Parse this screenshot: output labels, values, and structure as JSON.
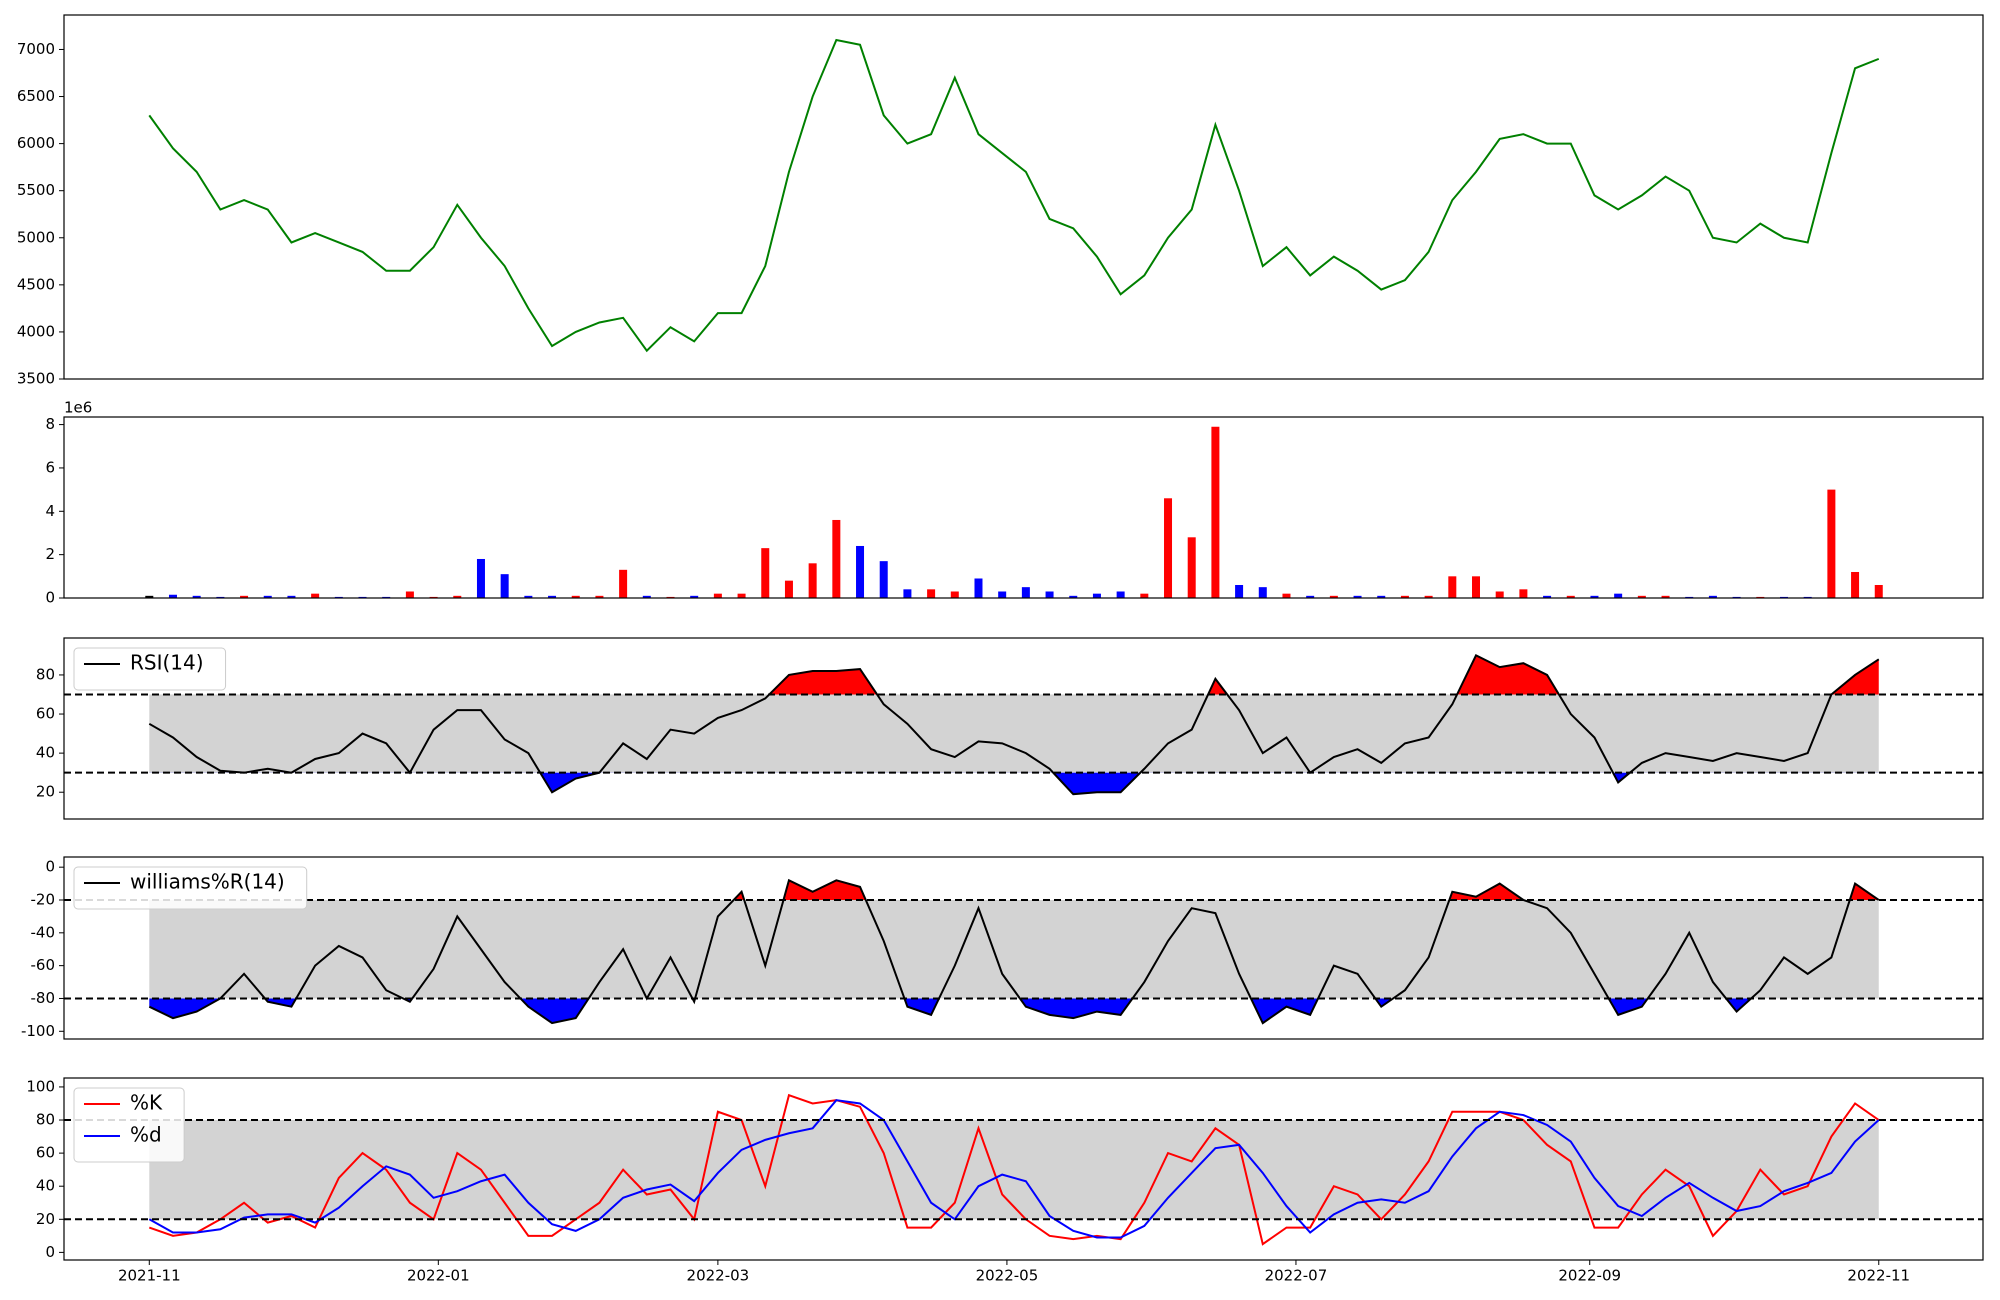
{
  "chart_data": [
    {
      "type": "line",
      "color": "green",
      "x": [
        0,
        5,
        10,
        15,
        20,
        25,
        30,
        35,
        40,
        45,
        50,
        55,
        60,
        65,
        70,
        75,
        80,
        85,
        90,
        95,
        100,
        105,
        110,
        115,
        120,
        125,
        130,
        135,
        140,
        145,
        150,
        155,
        160,
        165,
        170,
        175,
        180,
        185,
        190,
        195,
        200,
        205,
        210,
        215,
        220,
        225,
        230,
        235,
        240,
        245,
        250,
        255,
        260,
        265,
        270,
        275,
        280,
        285,
        290,
        295,
        300,
        305,
        310,
        315,
        320,
        325,
        330,
        335,
        340,
        345,
        350,
        355,
        360,
        365
      ],
      "xlim": [
        -18,
        387
      ],
      "xticks": [
        {
          "value": 0,
          "label": "2021-11"
        },
        {
          "value": 61,
          "label": "2022-01"
        },
        {
          "value": 120,
          "label": "2022-03"
        },
        {
          "value": 181,
          "label": "2022-05"
        },
        {
          "value": 242,
          "label": "2022-07"
        },
        {
          "value": 304,
          "label": "2022-09"
        },
        {
          "value": 365,
          "label": "2022-11"
        }
      ],
      "values": [
        6300,
        5950,
        5700,
        5300,
        5400,
        5300,
        4950,
        5050,
        4950,
        4850,
        4650,
        4650,
        4900,
        5350,
        5000,
        4700,
        4250,
        3850,
        4000,
        4100,
        4150,
        3800,
        4050,
        3900,
        4200,
        4200,
        4700,
        5700,
        6500,
        7100,
        7050,
        6300,
        6000,
        6100,
        6700,
        6100,
        5900,
        5700,
        5200,
        5100,
        4800,
        4400,
        4600,
        5000,
        5300,
        6200,
        5500,
        4700,
        4900,
        4600,
        4800,
        4650,
        4450,
        4550,
        4850,
        5400,
        5700,
        6050,
        6100,
        6000,
        6000,
        5450,
        5300,
        5450,
        5650,
        5500,
        5000,
        4950,
        5150,
        5000,
        4950,
        5900,
        6800,
        6900
      ],
      "ylim": [
        3500,
        7366
      ],
      "yticks": [
        3500,
        4000,
        4500,
        5000,
        5500,
        6000,
        6500,
        7000
      ]
    },
    {
      "type": "bar",
      "offset_label": "1e6",
      "up_color": "red",
      "down_color": "blue",
      "neutral_color": "black",
      "values": [
        0.1,
        0.15,
        0.1,
        0.05,
        0.1,
        0.1,
        0.1,
        0.2,
        0.05,
        0.05,
        0.05,
        0.3,
        0.05,
        0.1,
        1.8,
        1.1,
        0.1,
        0.1,
        0.1,
        0.1,
        1.3,
        0.1,
        0.05,
        0.1,
        0.2,
        0.2,
        2.3,
        0.8,
        1.6,
        3.6,
        2.4,
        1.7,
        0.4,
        0.4,
        0.3,
        0.9,
        0.3,
        0.5,
        0.3,
        0.1,
        0.2,
        0.3,
        0.2,
        4.6,
        2.8,
        7.9,
        0.6,
        0.5,
        0.2,
        0.1,
        0.1,
        0.1,
        0.1,
        0.1,
        0.1,
        1.0,
        1.0,
        0.3,
        0.4,
        0.1,
        0.1,
        0.1,
        0.2,
        0.1,
        0.1,
        0.05,
        0.1,
        0.05,
        0.05,
        0.05,
        0.05,
        5.0,
        1.2,
        0.6
      ],
      "ylim": [
        0,
        8.35
      ],
      "yticks": [
        0,
        2,
        4,
        6,
        8
      ]
    },
    {
      "type": "line",
      "levels": [
        30,
        70
      ],
      "band_color": "#d3d3d3",
      "overbought_color": "red",
      "oversold_color": "blue",
      "fill_extremes": true,
      "legend": "upper left",
      "series": [
        {
          "name": "RSI(14)",
          "color": "black",
          "values": [
            55,
            48,
            38,
            31,
            30,
            32,
            30,
            37,
            40,
            50,
            45,
            30,
            52,
            62,
            62,
            47,
            40,
            20,
            27,
            30,
            45,
            37,
            52,
            50,
            58,
            62,
            68,
            80,
            82,
            82,
            83,
            65,
            55,
            42,
            38,
            46,
            45,
            40,
            32,
            19,
            20,
            20,
            32,
            45,
            52,
            78,
            62,
            40,
            48,
            30,
            38,
            42,
            35,
            45,
            48,
            65,
            90,
            84,
            86,
            80,
            60,
            48,
            25,
            35,
            40,
            38,
            36,
            40,
            38,
            36,
            40,
            70,
            80,
            88
          ]
        }
      ],
      "ylim": [
        6.3,
        98.9
      ],
      "yticks": [
        20,
        40,
        60,
        80
      ]
    },
    {
      "type": "line",
      "levels": [
        -80,
        -20
      ],
      "band_color": "#d3d3d3",
      "overbought_color": "red",
      "oversold_color": "blue",
      "fill_extremes": true,
      "legend": "upper left",
      "series": [
        {
          "name": "williams%R(14)",
          "color": "black",
          "values": [
            -85,
            -92,
            -88,
            -80,
            -65,
            -82,
            -85,
            -60,
            -48,
            -55,
            -75,
            -82,
            -62,
            -30,
            -50,
            -70,
            -85,
            -95,
            -92,
            -70,
            -50,
            -80,
            -55,
            -82,
            -30,
            -15,
            -60,
            -8,
            -15,
            -8,
            -12,
            -45,
            -85,
            -90,
            -60,
            -25,
            -65,
            -85,
            -90,
            -92,
            -88,
            -90,
            -70,
            -45,
            -25,
            -28,
            -65,
            -95,
            -85,
            -90,
            -60,
            -65,
            -85,
            -75,
            -55,
            -15,
            -18,
            -10,
            -20,
            -25,
            -40,
            -65,
            -90,
            -85,
            -65,
            -40,
            -70,
            -88,
            -75,
            -55,
            -65,
            -55,
            -10,
            -20
          ]
        }
      ],
      "ylim": [
        -104.7,
        6.2
      ],
      "yticks": [
        -100,
        -80,
        -60,
        -40,
        -20,
        0
      ]
    },
    {
      "type": "line",
      "levels": [
        20,
        80
      ],
      "band_color": "#d3d3d3",
      "fill_extremes": false,
      "legend": "upper left",
      "series": [
        {
          "name": "%K",
          "color": "red",
          "values": [
            15,
            10,
            12,
            20,
            30,
            18,
            22,
            15,
            45,
            60,
            50,
            30,
            20,
            60,
            50,
            30,
            10,
            10,
            20,
            30,
            50,
            35,
            38,
            20,
            85,
            80,
            40,
            95,
            90,
            92,
            88,
            60,
            15,
            15,
            30,
            75,
            35,
            20,
            10,
            8,
            10,
            8,
            30,
            60,
            55,
            75,
            65,
            5,
            15,
            15,
            40,
            35,
            20,
            35,
            55,
            85,
            85,
            85,
            80,
            65,
            55,
            15,
            15,
            35,
            50,
            40,
            10,
            25,
            50,
            35,
            40,
            70,
            90,
            80
          ]
        },
        {
          "name": "%d",
          "color": "blue",
          "values": [
            20,
            12,
            12,
            14,
            21,
            23,
            23,
            18,
            27,
            40,
            52,
            47,
            33,
            37,
            43,
            47,
            30,
            17,
            13,
            20,
            33,
            38,
            41,
            31,
            48,
            62,
            68,
            72,
            75,
            92,
            90,
            80,
            55,
            30,
            20,
            40,
            47,
            43,
            22,
            13,
            9,
            9,
            16,
            33,
            48,
            63,
            65,
            48,
            28,
            12,
            23,
            30,
            32,
            30,
            37,
            58,
            75,
            85,
            83,
            77,
            67,
            45,
            28,
            22,
            33,
            42,
            33,
            25,
            28,
            37,
            42,
            48,
            67,
            80
          ]
        }
      ],
      "ylim": [
        -4.6,
        105.4
      ],
      "yticks": [
        0,
        20,
        40,
        60,
        80,
        100
      ]
    }
  ]
}
